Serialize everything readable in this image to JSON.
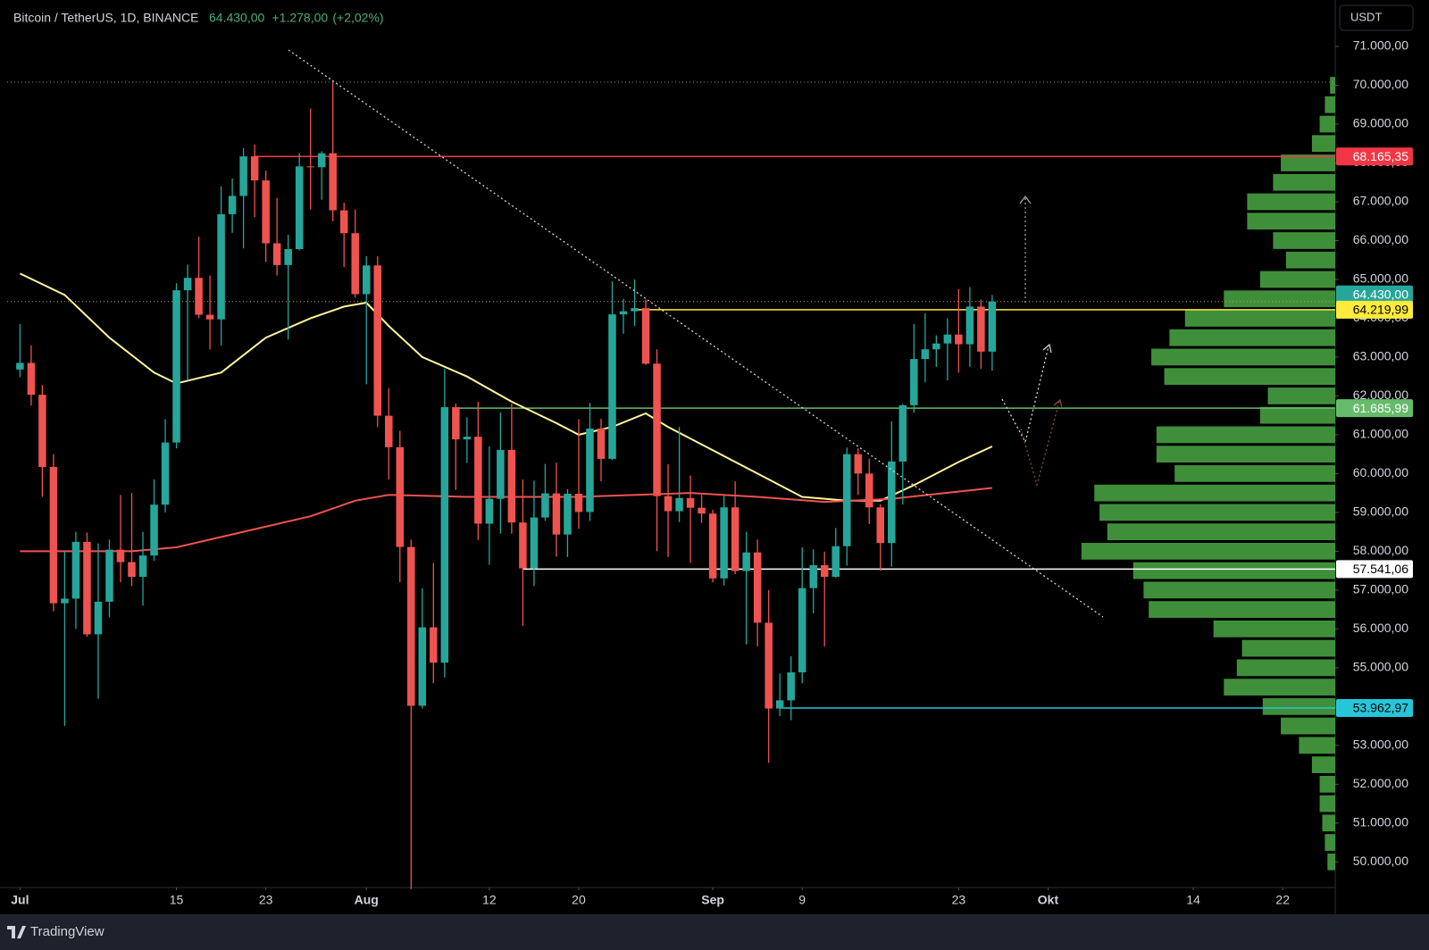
{
  "chart_data": {
    "type": "candlestick",
    "title": "Bitcoin / TetherUS, 1D, BINANCE",
    "last": {
      "value": 64430,
      "label": "64.430,00"
    },
    "change": {
      "value": 1278,
      "label": "+1.278,00"
    },
    "change_pct": {
      "value": 2.02,
      "label": "(+2,02%)"
    },
    "currency": "USDT",
    "brand": "TradingView",
    "up_color": "#26a69a",
    "down_color": "#ef5350",
    "grid": false,
    "xlim": [
      -1.15,
      117.7
    ],
    "ylim": [
      49386,
      72196
    ],
    "xticks": [
      {
        "value": 0,
        "label": "Jul"
      },
      {
        "value": 14,
        "label": "15"
      },
      {
        "value": 22,
        "label": "23"
      },
      {
        "value": 31,
        "label": "Aug"
      },
      {
        "value": 42,
        "label": "12"
      },
      {
        "value": 50,
        "label": "20"
      },
      {
        "value": 62,
        "label": "Sep"
      },
      {
        "value": 70,
        "label": "9"
      },
      {
        "value": 84,
        "label": "23"
      },
      {
        "value": 92,
        "label": "Okt"
      },
      {
        "value": 105,
        "label": "14"
      },
      {
        "value": 113,
        "label": "22"
      }
    ],
    "yticks": [
      {
        "value": 50000,
        "label": "50.000,00"
      },
      {
        "value": 51000,
        "label": "51.000,00"
      },
      {
        "value": 52000,
        "label": "52.000,00"
      },
      {
        "value": 53000,
        "label": "53.000,00"
      },
      {
        "value": 54000,
        "label": "54.000,00"
      },
      {
        "value": 55000,
        "label": "55.000,00"
      },
      {
        "value": 56000,
        "label": "56.000,00"
      },
      {
        "value": 57000,
        "label": "57.000,00"
      },
      {
        "value": 58000,
        "label": "58.000,00"
      },
      {
        "value": 59000,
        "label": "59.000,00"
      },
      {
        "value": 60000,
        "label": "60.000,00"
      },
      {
        "value": 61000,
        "label": "61.000,00"
      },
      {
        "value": 62000,
        "label": "62.000,00"
      },
      {
        "value": 63000,
        "label": "63.000,00"
      },
      {
        "value": 64000,
        "label": "64.000,00"
      },
      {
        "value": 65000,
        "label": "65.000,00"
      },
      {
        "value": 66000,
        "label": "66.000,00"
      },
      {
        "value": 67000,
        "label": "67.000,00"
      },
      {
        "value": 68000,
        "label": "68.000,00"
      },
      {
        "value": 69000,
        "label": "69.000,00"
      },
      {
        "value": 70000,
        "label": "70.000,00"
      },
      {
        "value": 71000,
        "label": "71.000,00"
      }
    ],
    "x": [
      0,
      1,
      2,
      3,
      4,
      5,
      6,
      7,
      8,
      9,
      10,
      11,
      12,
      13,
      14,
      15,
      16,
      17,
      18,
      19,
      20,
      21,
      22,
      23,
      24,
      25,
      26,
      27,
      28,
      29,
      30,
      31,
      32,
      33,
      34,
      35,
      36,
      37,
      38,
      39,
      40,
      41,
      42,
      43,
      44,
      45,
      46,
      47,
      48,
      49,
      50,
      51,
      52,
      53,
      54,
      55,
      56,
      57,
      58,
      59,
      60,
      61,
      62,
      63,
      64,
      65,
      66,
      67,
      68,
      69,
      70,
      71,
      72,
      73,
      74,
      75,
      76,
      77,
      78,
      79,
      80,
      81,
      82,
      83,
      84,
      85,
      86,
      87
    ],
    "open": [
      62680,
      62850,
      62030,
      60170,
      56660,
      56780,
      58240,
      55860,
      56700,
      58040,
      57720,
      57340,
      57890,
      59200,
      60800,
      64720,
      65040,
      64090,
      63970,
      66680,
      67150,
      68170,
      67550,
      65930,
      65370,
      65780,
      67910,
      67890,
      68250,
      66780,
      66190,
      64620,
      65360,
      61490,
      60680,
      58110,
      54020,
      56040,
      55130,
      61710,
      60880,
      60950,
      58710,
      59350,
      60610,
      58740,
      57560,
      58870,
      59490,
      58430,
      59480,
      59010,
      61160,
      60380,
      64100,
      64180,
      64260,
      62830,
      59420,
      59030,
      59370,
      59120,
      58970,
      57300,
      59130,
      57490,
      57970,
      56160,
      53950,
      54160,
      54880,
      57050,
      57640,
      57340,
      58130,
      60500,
      60000,
      59130,
      58210,
      60310,
      61760,
      62950,
      63200,
      63350,
      63580,
      63330,
      64300,
      63140
    ],
    "high": [
      63850,
      63300,
      62280,
      60500,
      58000,
      58500,
      58480,
      58200,
      58300,
      59450,
      59500,
      58500,
      59850,
      61400,
      64900,
      65380,
      66100,
      65100,
      67400,
      67600,
      68380,
      68480,
      67800,
      67100,
      66150,
      68250,
      69400,
      68300,
      70080,
      66980,
      66800,
      65600,
      65600,
      62200,
      61100,
      58300,
      57050,
      57700,
      62700,
      61800,
      61450,
      61850,
      60700,
      61570,
      61800,
      59850,
      59820,
      60250,
      60280,
      59600,
      61400,
      61820,
      61410,
      64950,
      64500,
      65000,
      64480,
      63200,
      60240,
      61200,
      59950,
      59450,
      59070,
      59430,
      59800,
      58500,
      58300,
      57000,
      54850,
      55300,
      58100,
      58050,
      57990,
      58600,
      60670,
      60650,
      60380,
      59210,
      61350,
      61790,
      63850,
      64130,
      63560,
      64000,
      64750,
      64800,
      64480,
      64600
    ],
    "low": [
      62480,
      61750,
      59400,
      56450,
      53500,
      56000,
      55800,
      54200,
      56300,
      57200,
      57100,
      56600,
      57750,
      59000,
      60650,
      62400,
      64000,
      63200,
      63300,
      66200,
      65800,
      66600,
      65450,
      65100,
      63450,
      65750,
      66800,
      67050,
      66500,
      65320,
      64530,
      62300,
      61200,
      59850,
      57200,
      49300,
      53950,
      54600,
      54750,
      59580,
      60270,
      58290,
      57650,
      58450,
      58450,
      56080,
      57100,
      58780,
      57860,
      57850,
      58580,
      58780,
      59800,
      60350,
      63600,
      63800,
      62800,
      58000,
      57850,
      58750,
      57700,
      58730,
      57200,
      57120,
      57410,
      55600,
      55550,
      52550,
      53750,
      53650,
      54600,
      56400,
      55550,
      57320,
      57630,
      59450,
      58700,
      57500,
      57600,
      59200,
      61570,
      62350,
      62750,
      62400,
      62600,
      62750,
      62700,
      62650
    ],
    "close": [
      62850,
      62030,
      60170,
      56660,
      56780,
      58240,
      55860,
      56700,
      58040,
      57720,
      57340,
      57890,
      59200,
      60800,
      64720,
      65040,
      64090,
      63970,
      66680,
      67150,
      68170,
      67550,
      65930,
      65370,
      65780,
      67910,
      67890,
      68250,
      66780,
      66190,
      64620,
      65360,
      61490,
      60680,
      58110,
      54020,
      56040,
      55130,
      61710,
      60880,
      60950,
      58710,
      59350,
      60610,
      58740,
      57560,
      58870,
      59490,
      58430,
      59480,
      59010,
      61160,
      60380,
      64100,
      64180,
      64260,
      62830,
      59420,
      59030,
      59370,
      59120,
      58970,
      57300,
      59130,
      57490,
      57970,
      56160,
      53950,
      54160,
      54880,
      57050,
      57640,
      57340,
      58130,
      60500,
      60000,
      59130,
      58210,
      60310,
      61760,
      62950,
      63200,
      63350,
      63580,
      63330,
      64300,
      63140,
      64430
    ],
    "moving_averages": [
      {
        "color": "#fff59d",
        "x": [
          0,
          4,
          8,
          12,
          14,
          18,
          22,
          26,
          29,
          31,
          33,
          36,
          40,
          44,
          48,
          50,
          53,
          56,
          58,
          62,
          66,
          70,
          74,
          77,
          80,
          84,
          87
        ],
        "values": [
          65150,
          64600,
          63500,
          62600,
          62320,
          62600,
          63500,
          64000,
          64300,
          64400,
          63800,
          63000,
          62500,
          61850,
          61300,
          61000,
          61200,
          61550,
          61200,
          60600,
          60000,
          59400,
          59300,
          59300,
          59700,
          60300,
          60700
        ]
      },
      {
        "color": "#ef5350",
        "x": [
          0,
          10,
          14,
          20,
          26,
          30,
          33,
          40,
          50,
          60,
          66,
          72,
          78,
          87
        ],
        "values": [
          58000,
          58000,
          58100,
          58500,
          58900,
          59300,
          59450,
          59400,
          59400,
          59500,
          59400,
          59270,
          59350,
          59630
        ]
      }
    ],
    "levels": [
      {
        "value": 68165.35,
        "label": "68.165,35",
        "color": "#f23645",
        "label_color": "#ffffff",
        "x_start": 21
      },
      {
        "value": 64219.99,
        "label": "64.219,99",
        "color": "#ffeb3b",
        "label_color": "#000000",
        "x_start": 55
      },
      {
        "value": 61685.99,
        "label": "61.685,99",
        "color": "#66bb6a",
        "label_color": "#ffffff",
        "x_start": 39
      },
      {
        "value": 57541.06,
        "label": "57.541,06",
        "color": "#ffffff",
        "label_color": "#000000",
        "x_start": 45
      },
      {
        "value": 53962.97,
        "label": "53.962,97",
        "color": "#26c6da",
        "label_color": "#000000",
        "x_start": 68
      }
    ],
    "volume_profile": {
      "color": "#3f8f3a",
      "bin_size": 500,
      "prices": [
        50000,
        50500,
        51000,
        51500,
        52000,
        52500,
        53000,
        53500,
        54000,
        54500,
        55000,
        55500,
        56000,
        56500,
        57000,
        57500,
        58000,
        58500,
        59000,
        59500,
        60000,
        60500,
        61000,
        61500,
        62000,
        62500,
        63000,
        63500,
        64000,
        64500,
        65000,
        65500,
        66000,
        66500,
        67000,
        67500,
        68000,
        68500,
        69000,
        69500,
        70000
      ],
      "values": [
        3,
        4,
        5,
        6,
        6,
        9,
        14,
        21,
        28,
        43,
        38,
        36,
        47,
        72,
        74,
        78,
        98,
        88,
        91,
        93,
        62,
        69,
        69,
        29,
        26,
        66,
        71,
        64,
        58,
        43,
        29,
        19,
        24,
        34,
        34,
        24,
        21,
        9,
        6,
        4,
        2
      ]
    }
  }
}
